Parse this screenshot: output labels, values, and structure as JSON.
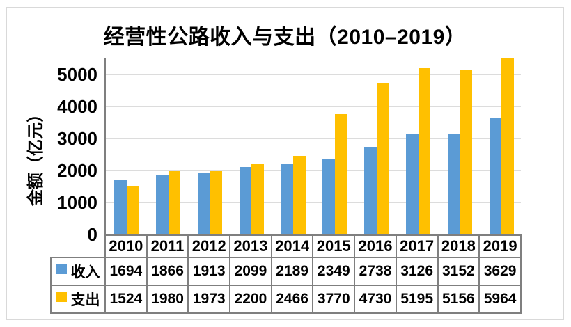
{
  "chart_data": {
    "type": "bar",
    "title": "经营性公路收入与支出（2010–2019）",
    "ylabel": "金额（亿元）",
    "xlabel": "",
    "categories": [
      "2010",
      "2011",
      "2012",
      "2013",
      "2014",
      "2015",
      "2016",
      "2017",
      "2018",
      "2019"
    ],
    "series": [
      {
        "name": "收入",
        "color": "#5B9BD5",
        "values": [
          1694,
          1866,
          1913,
          2099,
          2189,
          2349,
          2738,
          3126,
          3152,
          3629
        ]
      },
      {
        "name": "支出",
        "color": "#FFC000",
        "values": [
          1524,
          1980,
          1973,
          2200,
          2466,
          3770,
          4730,
          5195,
          5156,
          5964
        ]
      }
    ],
    "ylim": [
      0,
      5500
    ],
    "yticks": [
      0,
      1000,
      2000,
      3000,
      4000,
      5000
    ],
    "grid": true,
    "legend_position": "data-table-left",
    "data_table": true
  },
  "colors": {
    "background": "#FFFFFF",
    "chart_border": "#D9D9D9",
    "gridline": "#DCDCDC",
    "axis_line": "#7F7F7F",
    "table_border": "#7F7F7F",
    "text": "#000000",
    "series_income": "#5B9BD5",
    "series_expense": "#FFC000"
  }
}
